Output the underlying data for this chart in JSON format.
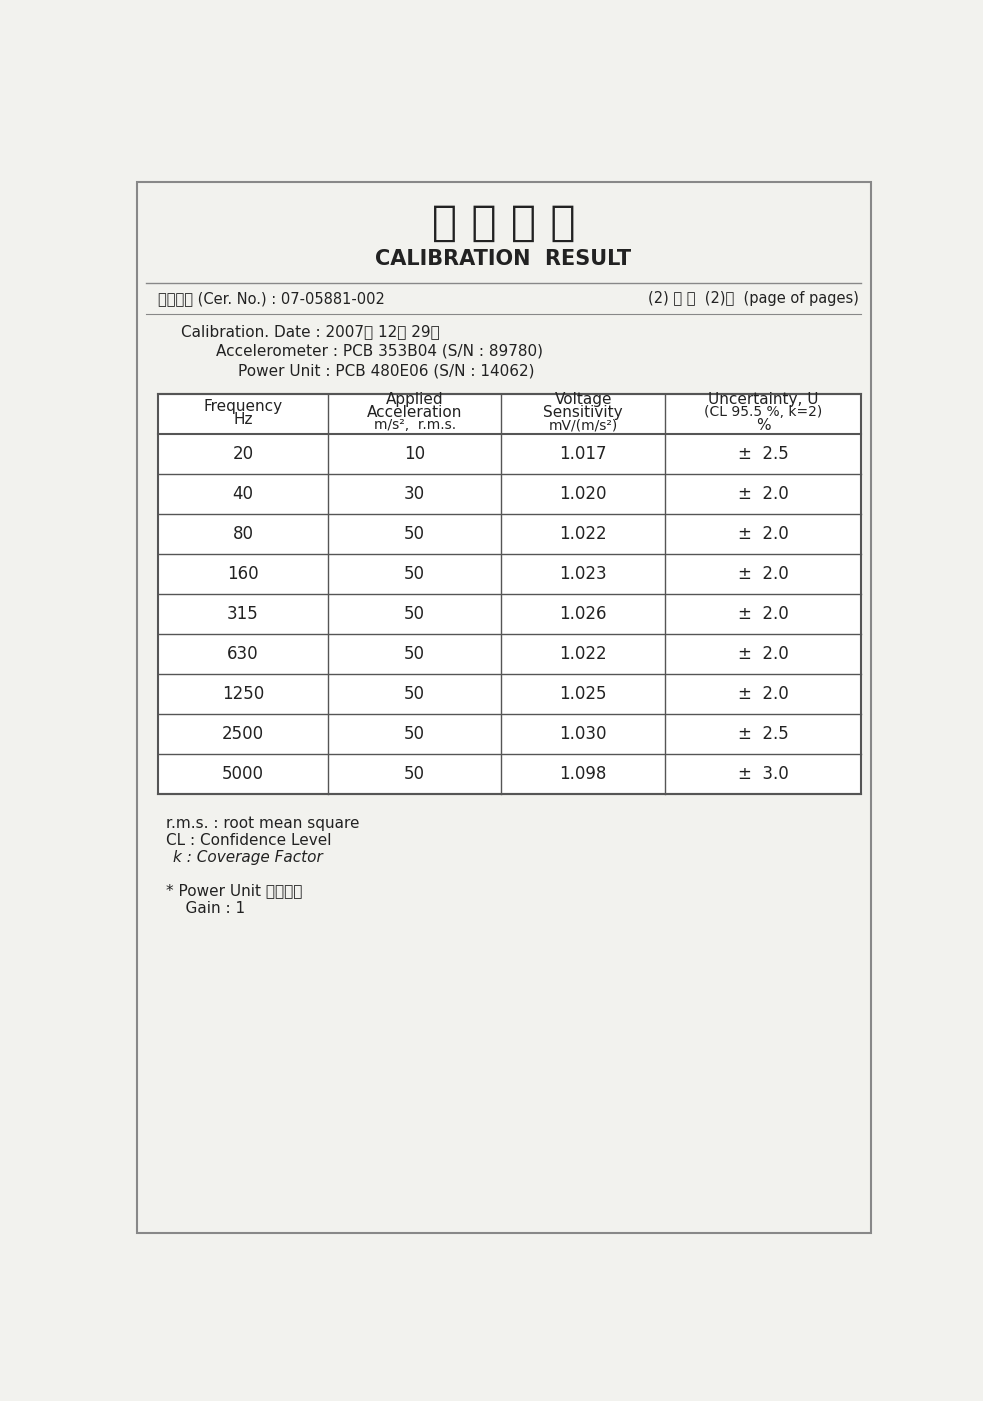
{
  "title_korean": "교 정 결 과",
  "title_english": "CALIBRATION  RESULT",
  "cert_no_label": "교정번호 (Cer. No.) : 07-05881-002",
  "page_info": "(2) 쪽 중  (2)쪽  (page of pages)",
  "cal_date": "Calibration. Date : 2007년 12월 29일",
  "accelerometer": "Accelerometer : PCB 353B04 (S/N : 89780)",
  "power_unit": "Power Unit : PCB 480E06 (S/N : 14062)",
  "col_headers": [
    [
      "Frequency",
      "Hz"
    ],
    [
      "Applied",
      "Acceleration",
      "m/s²,  r.m.s."
    ],
    [
      "Voltage",
      "Sensitivity",
      "mV/(m/s²)"
    ],
    [
      "Uncertainty, U",
      "(CL 95.5 %, k=2)",
      "%"
    ]
  ],
  "table_data": [
    [
      "20",
      "10",
      "1.017",
      "±  2.5"
    ],
    [
      "40",
      "30",
      "1.020",
      "±  2.0"
    ],
    [
      "80",
      "50",
      "1.022",
      "±  2.0"
    ],
    [
      "160",
      "50",
      "1.023",
      "±  2.0"
    ],
    [
      "315",
      "50",
      "1.026",
      "±  2.0"
    ],
    [
      "630",
      "50",
      "1.022",
      "±  2.0"
    ],
    [
      "1250",
      "50",
      "1.025",
      "±  2.0"
    ],
    [
      "2500",
      "50",
      "1.030",
      "±  2.5"
    ],
    [
      "5000",
      "50",
      "1.098",
      "±  3.0"
    ]
  ],
  "footnotes": [
    [
      "r.m.s. : root mean square",
      "normal",
      false
    ],
    [
      "CL : Confidence Level",
      "normal",
      false
    ],
    [
      "k : Coverage Factor",
      "italic",
      true
    ],
    [
      "",
      "normal",
      false
    ],
    [
      "* Power Unit 설정조건",
      "normal",
      false
    ],
    [
      "    Gain : 1",
      "normal",
      false
    ]
  ],
  "bg_color": "#f2f2ee",
  "border_color": "#888888",
  "text_color": "#222222",
  "table_line_color": "#555555",
  "white": "#ffffff"
}
